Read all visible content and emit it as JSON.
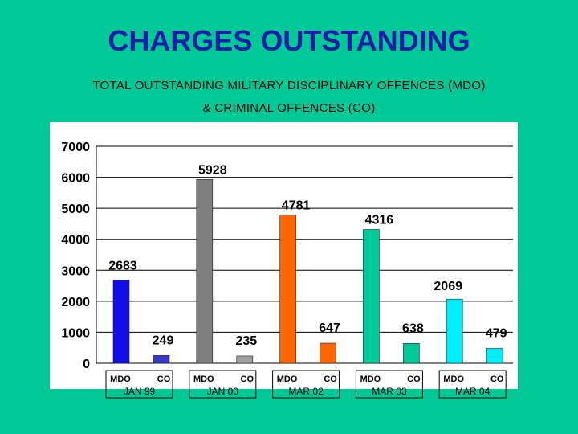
{
  "page": {
    "title": "CHARGES OUTSTANDING",
    "subtitle_line1": "TOTAL OUTSTANDING MILITARY DISCIPLINARY OFFENCES (MDO)",
    "subtitle_line2": "& CRIMINAL OFFENCES (CO)"
  },
  "colors": {
    "background": "#00c896",
    "title": "#1c1ca8"
  },
  "chart_data": {
    "type": "bar",
    "title": "",
    "xlabel": "",
    "ylabel": "",
    "ylim": [
      0,
      7000
    ],
    "yticks": [
      0,
      1000,
      2000,
      3000,
      4000,
      5000,
      6000,
      7000
    ],
    "grid": true,
    "groups": [
      {
        "label": "JAN 99",
        "bars": [
          {
            "label": "MDO",
            "value": 2683,
            "color": "#1010e8"
          },
          {
            "label": "CO",
            "value": 249,
            "color": "#3838c8"
          }
        ]
      },
      {
        "label": "JAN 00",
        "bars": [
          {
            "label": "MDO",
            "value": 5928,
            "color": "#7f7f7f"
          },
          {
            "label": "CO",
            "value": 235,
            "color": "#a0a0a0"
          }
        ]
      },
      {
        "label": "MAR 02",
        "bars": [
          {
            "label": "MDO",
            "value": 4781,
            "color": "#ff6600"
          },
          {
            "label": "CO",
            "value": 647,
            "color": "#ff6600"
          }
        ]
      },
      {
        "label": "MAR 03",
        "bars": [
          {
            "label": "MDO",
            "value": 4316,
            "color": "#00c896"
          },
          {
            "label": "CO",
            "value": 638,
            "color": "#00c896"
          }
        ]
      },
      {
        "label": "MAR 04",
        "bars": [
          {
            "label": "MDO",
            "value": 2069,
            "color": "#00f0ff"
          },
          {
            "label": "CO",
            "value": 479,
            "color": "#00f0ff"
          }
        ]
      }
    ]
  }
}
